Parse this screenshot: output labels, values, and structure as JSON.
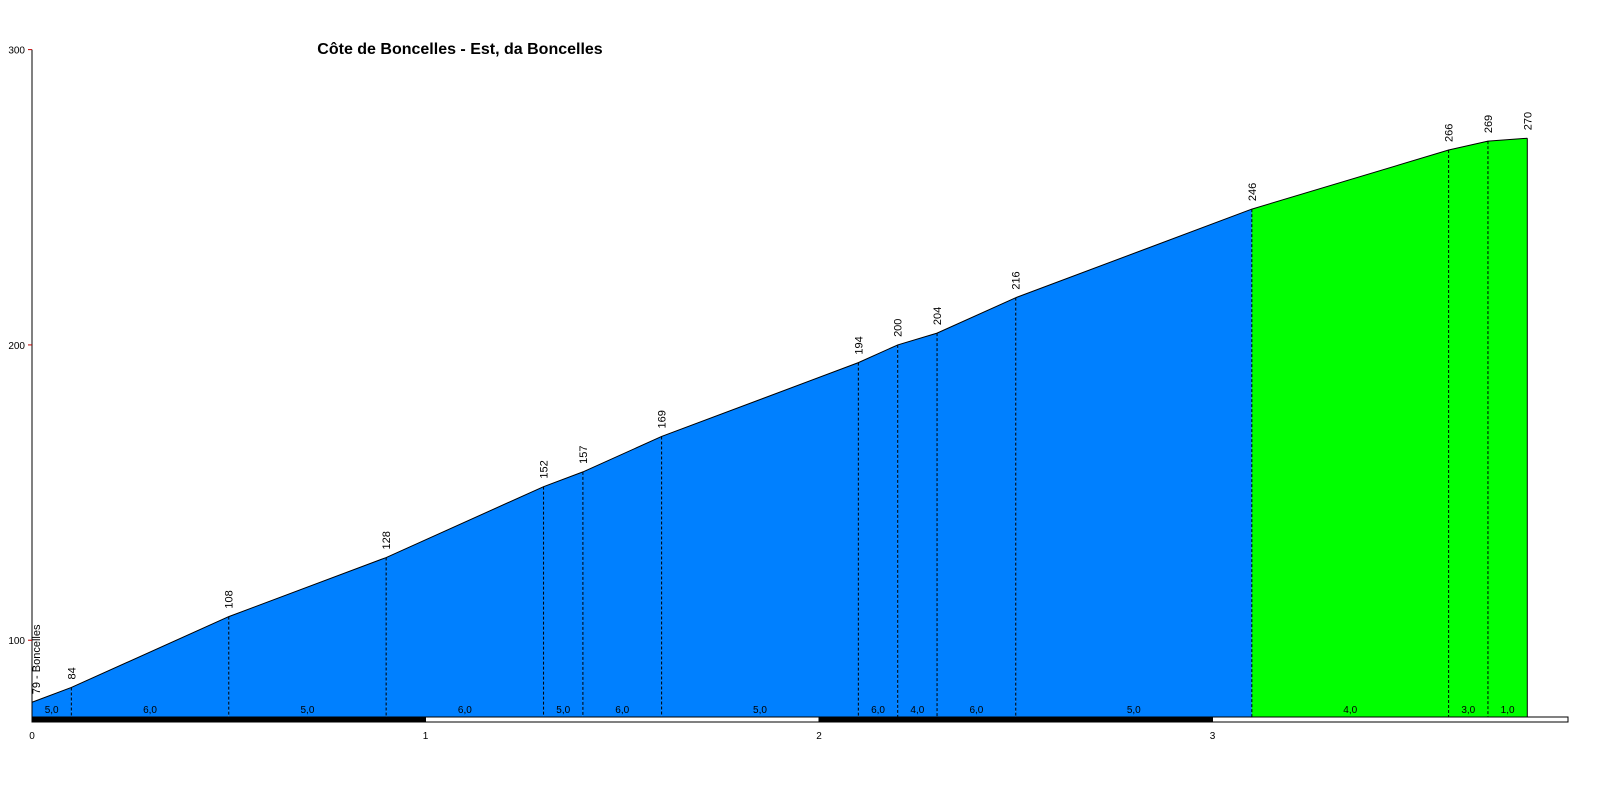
{
  "chart_data": {
    "type": "area",
    "title": "Côte de Boncelles - Est, da Boncelles",
    "xlabel": "",
    "ylabel": "",
    "xlim": [
      0,
      4
    ],
    "ylim": [
      74,
      300
    ],
    "x_ticks": [
      "0",
      "1",
      "2",
      "3"
    ],
    "y_ticks": [
      "100",
      "200",
      "300"
    ],
    "start_label": "79 - Boncelles",
    "grid": false,
    "colors": {
      "climb": "#0080ff",
      "steep": "#00ff00",
      "outline": "#000000"
    },
    "profile": [
      {
        "x": 0.0,
        "y": 79,
        "label": ""
      },
      {
        "x": 0.1,
        "y": 84,
        "label": "84"
      },
      {
        "x": 0.5,
        "y": 108,
        "label": "108"
      },
      {
        "x": 0.9,
        "y": 128,
        "label": "128"
      },
      {
        "x": 1.3,
        "y": 152,
        "label": "152"
      },
      {
        "x": 1.4,
        "y": 157,
        "label": "157"
      },
      {
        "x": 1.6,
        "y": 169,
        "label": "169"
      },
      {
        "x": 2.1,
        "y": 194,
        "label": "194"
      },
      {
        "x": 2.2,
        "y": 200,
        "label": "200"
      },
      {
        "x": 2.3,
        "y": 204,
        "label": "204"
      },
      {
        "x": 2.5,
        "y": 216,
        "label": "216"
      },
      {
        "x": 3.1,
        "y": 246,
        "label": "246"
      },
      {
        "x": 3.6,
        "y": 266,
        "label": "266"
      },
      {
        "x": 3.7,
        "y": 269,
        "label": "269"
      },
      {
        "x": 3.8,
        "y": 270,
        "label": "270"
      }
    ],
    "segments": [
      {
        "from": 0.0,
        "to": 0.1,
        "gradient": "5,0",
        "color": "#0080ff"
      },
      {
        "from": 0.1,
        "to": 0.5,
        "gradient": "6,0",
        "color": "#0080ff"
      },
      {
        "from": 0.5,
        "to": 0.9,
        "gradient": "5,0",
        "color": "#0080ff"
      },
      {
        "from": 0.9,
        "to": 1.3,
        "gradient": "6,0",
        "color": "#0080ff"
      },
      {
        "from": 1.3,
        "to": 1.4,
        "gradient": "5,0",
        "color": "#0080ff"
      },
      {
        "from": 1.4,
        "to": 1.6,
        "gradient": "6,0",
        "color": "#0080ff"
      },
      {
        "from": 1.6,
        "to": 2.1,
        "gradient": "5,0",
        "color": "#0080ff"
      },
      {
        "from": 2.1,
        "to": 2.2,
        "gradient": "6,0",
        "color": "#0080ff"
      },
      {
        "from": 2.2,
        "to": 2.3,
        "gradient": "4,0",
        "color": "#0080ff"
      },
      {
        "from": 2.3,
        "to": 2.5,
        "gradient": "6,0",
        "color": "#0080ff"
      },
      {
        "from": 2.5,
        "to": 3.1,
        "gradient": "5,0",
        "color": "#0080ff"
      },
      {
        "from": 3.1,
        "to": 3.6,
        "gradient": "4,0",
        "color": "#00ff00"
      },
      {
        "from": 3.6,
        "to": 3.7,
        "gradient": "3,0",
        "color": "#00ff00"
      },
      {
        "from": 3.7,
        "to": 3.8,
        "gradient": "1,0",
        "color": "#00ff00"
      }
    ]
  }
}
